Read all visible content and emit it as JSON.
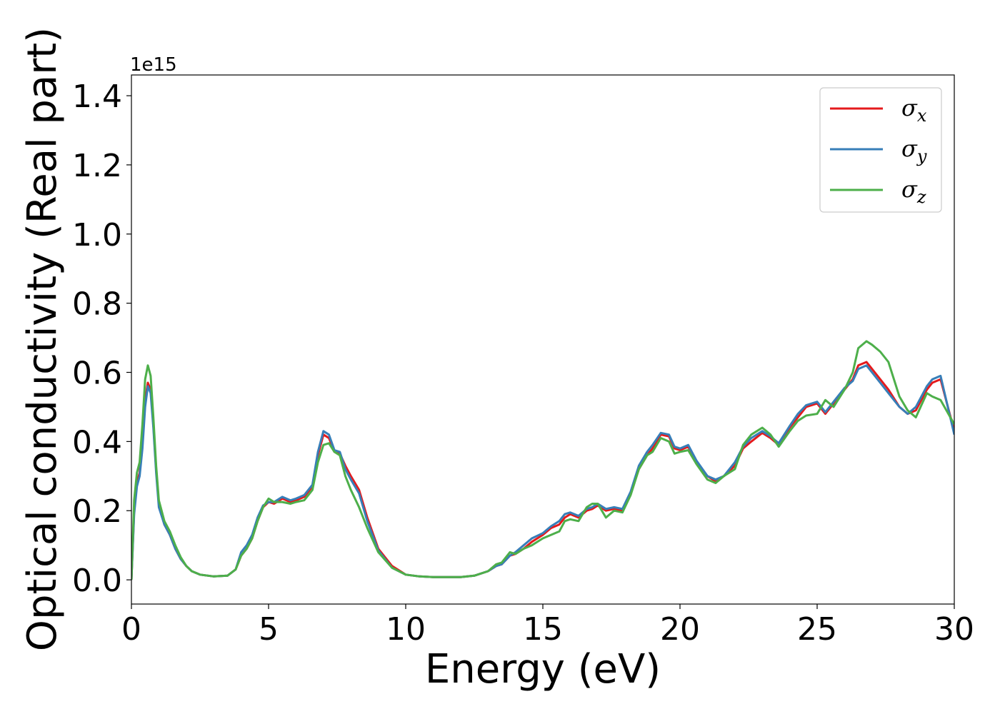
{
  "chart_data": {
    "type": "line",
    "title": "",
    "xlabel": "Energy (eV)",
    "ylabel": "Optical conductivity (Real part)",
    "y_offset_label": "1e15",
    "xlim": [
      0,
      30
    ],
    "ylim": [
      -0.07,
      1.46
    ],
    "xticks": [
      0,
      5,
      10,
      15,
      20,
      25,
      30
    ],
    "xtick_labels": [
      "0",
      "5",
      "10",
      "15",
      "20",
      "25",
      "30"
    ],
    "yticks": [
      0.0,
      0.2,
      0.4,
      0.6,
      0.8,
      1.0,
      1.2,
      1.4
    ],
    "ytick_labels": [
      "0.0",
      "0.2",
      "0.4",
      "0.6",
      "0.8",
      "1.0",
      "1.2",
      "1.4"
    ],
    "grid": false,
    "legend_position": "top-right",
    "series": [
      {
        "name": "σx",
        "name_base": "σ",
        "name_sub": "x",
        "color": "#e41a1c",
        "x": [
          0,
          0.1,
          0.2,
          0.3,
          0.4,
          0.5,
          0.6,
          0.7,
          0.8,
          0.9,
          1.0,
          1.2,
          1.4,
          1.6,
          1.8,
          2.0,
          2.2,
          2.5,
          3.0,
          3.5,
          3.8,
          4.0,
          4.2,
          4.4,
          4.6,
          4.8,
          5.0,
          5.2,
          5.5,
          5.8,
          6.0,
          6.3,
          6.6,
          6.8,
          7.0,
          7.2,
          7.4,
          7.6,
          7.8,
          8.0,
          8.3,
          8.6,
          9.0,
          9.5,
          10.0,
          10.5,
          11.0,
          12.0,
          12.5,
          13.0,
          13.3,
          13.5,
          13.8,
          14.0,
          14.3,
          14.6,
          15.0,
          15.3,
          15.6,
          15.8,
          16.0,
          16.3,
          16.6,
          16.8,
          17.0,
          17.3,
          17.6,
          17.9,
          18.2,
          18.5,
          18.8,
          19.0,
          19.3,
          19.6,
          19.8,
          20.0,
          20.3,
          20.6,
          21.0,
          21.3,
          21.6,
          22.0,
          22.3,
          22.6,
          23.0,
          23.3,
          23.6,
          24.0,
          24.3,
          24.6,
          25.0,
          25.3,
          25.6,
          26.0,
          26.3,
          26.5,
          26.8,
          27.0,
          27.3,
          27.6,
          28.0,
          28.3,
          28.6,
          29.0,
          29.2,
          29.5,
          30.0
        ],
        "y": [
          0,
          0.2,
          0.28,
          0.31,
          0.4,
          0.52,
          0.57,
          0.55,
          0.45,
          0.32,
          0.22,
          0.16,
          0.13,
          0.09,
          0.06,
          0.04,
          0.025,
          0.015,
          0.01,
          0.012,
          0.03,
          0.07,
          0.09,
          0.12,
          0.17,
          0.21,
          0.225,
          0.22,
          0.235,
          0.225,
          0.23,
          0.24,
          0.27,
          0.36,
          0.42,
          0.41,
          0.37,
          0.365,
          0.33,
          0.3,
          0.26,
          0.18,
          0.09,
          0.04,
          0.015,
          0.01,
          0.008,
          0.008,
          0.012,
          0.025,
          0.04,
          0.045,
          0.07,
          0.075,
          0.09,
          0.11,
          0.13,
          0.15,
          0.16,
          0.18,
          0.19,
          0.18,
          0.2,
          0.205,
          0.215,
          0.2,
          0.205,
          0.2,
          0.25,
          0.32,
          0.36,
          0.38,
          0.42,
          0.415,
          0.38,
          0.375,
          0.385,
          0.34,
          0.3,
          0.285,
          0.3,
          0.33,
          0.38,
          0.4,
          0.425,
          0.41,
          0.39,
          0.44,
          0.47,
          0.5,
          0.51,
          0.48,
          0.51,
          0.55,
          0.58,
          0.62,
          0.63,
          0.61,
          0.58,
          0.55,
          0.5,
          0.48,
          0.49,
          0.55,
          0.57,
          0.58,
          0.43
        ]
      },
      {
        "name": "σy",
        "name_base": "σ",
        "name_sub": "y",
        "color": "#377eb8",
        "x": [
          0,
          0.1,
          0.2,
          0.3,
          0.4,
          0.5,
          0.6,
          0.7,
          0.8,
          0.9,
          1.0,
          1.2,
          1.4,
          1.6,
          1.8,
          2.0,
          2.2,
          2.5,
          3.0,
          3.5,
          3.8,
          4.0,
          4.2,
          4.4,
          4.6,
          4.8,
          5.0,
          5.2,
          5.5,
          5.8,
          6.0,
          6.3,
          6.6,
          6.8,
          7.0,
          7.2,
          7.4,
          7.6,
          7.8,
          8.0,
          8.3,
          8.6,
          9.0,
          9.5,
          10.0,
          10.5,
          11.0,
          12.0,
          12.5,
          13.0,
          13.3,
          13.5,
          13.8,
          14.0,
          14.3,
          14.6,
          15.0,
          15.3,
          15.6,
          15.8,
          16.0,
          16.3,
          16.6,
          16.8,
          17.0,
          17.3,
          17.6,
          17.9,
          18.2,
          18.5,
          18.8,
          19.0,
          19.3,
          19.6,
          19.8,
          20.0,
          20.3,
          20.6,
          21.0,
          21.3,
          21.6,
          22.0,
          22.3,
          22.6,
          23.0,
          23.3,
          23.6,
          24.0,
          24.3,
          24.6,
          25.0,
          25.3,
          25.6,
          26.0,
          26.3,
          26.5,
          26.8,
          27.0,
          27.3,
          27.6,
          28.0,
          28.3,
          28.6,
          29.0,
          29.2,
          29.5,
          30.0
        ],
        "y": [
          0,
          0.19,
          0.27,
          0.3,
          0.38,
          0.5,
          0.56,
          0.54,
          0.44,
          0.31,
          0.21,
          0.16,
          0.13,
          0.09,
          0.06,
          0.04,
          0.025,
          0.015,
          0.01,
          0.012,
          0.03,
          0.08,
          0.1,
          0.13,
          0.18,
          0.215,
          0.225,
          0.225,
          0.24,
          0.23,
          0.235,
          0.245,
          0.275,
          0.37,
          0.43,
          0.42,
          0.375,
          0.37,
          0.32,
          0.29,
          0.25,
          0.17,
          0.085,
          0.035,
          0.015,
          0.01,
          0.008,
          0.008,
          0.012,
          0.025,
          0.04,
          0.045,
          0.07,
          0.08,
          0.1,
          0.12,
          0.135,
          0.155,
          0.17,
          0.19,
          0.195,
          0.185,
          0.205,
          0.21,
          0.22,
          0.205,
          0.21,
          0.205,
          0.255,
          0.33,
          0.37,
          0.39,
          0.425,
          0.42,
          0.385,
          0.38,
          0.39,
          0.345,
          0.3,
          0.29,
          0.3,
          0.34,
          0.385,
          0.41,
          0.43,
          0.415,
          0.395,
          0.445,
          0.48,
          0.505,
          0.515,
          0.485,
          0.515,
          0.555,
          0.575,
          0.61,
          0.62,
          0.6,
          0.57,
          0.54,
          0.5,
          0.48,
          0.5,
          0.56,
          0.58,
          0.59,
          0.42
        ]
      },
      {
        "name": "σz",
        "name_base": "σ",
        "name_sub": "z",
        "color": "#4daf4a",
        "x": [
          0,
          0.1,
          0.2,
          0.3,
          0.4,
          0.5,
          0.6,
          0.7,
          0.8,
          0.9,
          1.0,
          1.2,
          1.4,
          1.6,
          1.8,
          2.0,
          2.2,
          2.5,
          3.0,
          3.5,
          3.8,
          4.0,
          4.2,
          4.4,
          4.6,
          4.8,
          5.0,
          5.2,
          5.5,
          5.8,
          6.0,
          6.3,
          6.6,
          6.8,
          7.0,
          7.2,
          7.4,
          7.6,
          7.8,
          8.0,
          8.3,
          8.6,
          9.0,
          9.5,
          10.0,
          10.5,
          11.0,
          12.0,
          12.5,
          13.0,
          13.3,
          13.5,
          13.8,
          14.0,
          14.3,
          14.6,
          15.0,
          15.3,
          15.6,
          15.8,
          16.0,
          16.3,
          16.6,
          16.8,
          17.0,
          17.3,
          17.6,
          17.9,
          18.2,
          18.5,
          18.8,
          19.0,
          19.3,
          19.6,
          19.8,
          20.0,
          20.3,
          20.6,
          21.0,
          21.3,
          21.6,
          22.0,
          22.3,
          22.6,
          23.0,
          23.3,
          23.6,
          24.0,
          24.3,
          24.6,
          25.0,
          25.3,
          25.6,
          26.0,
          26.3,
          26.5,
          26.8,
          27.0,
          27.3,
          27.6,
          28.0,
          28.3,
          28.6,
          29.0,
          29.2,
          29.5,
          30.0
        ],
        "y": [
          0,
          0.23,
          0.31,
          0.34,
          0.45,
          0.58,
          0.62,
          0.59,
          0.47,
          0.33,
          0.23,
          0.17,
          0.14,
          0.1,
          0.065,
          0.04,
          0.025,
          0.015,
          0.01,
          0.012,
          0.03,
          0.07,
          0.09,
          0.12,
          0.17,
          0.21,
          0.235,
          0.225,
          0.225,
          0.22,
          0.225,
          0.23,
          0.26,
          0.34,
          0.39,
          0.395,
          0.37,
          0.36,
          0.3,
          0.26,
          0.21,
          0.15,
          0.08,
          0.035,
          0.015,
          0.01,
          0.008,
          0.008,
          0.012,
          0.025,
          0.045,
          0.05,
          0.08,
          0.075,
          0.09,
          0.1,
          0.12,
          0.13,
          0.14,
          0.17,
          0.175,
          0.17,
          0.21,
          0.22,
          0.22,
          0.18,
          0.2,
          0.195,
          0.245,
          0.32,
          0.36,
          0.37,
          0.41,
          0.4,
          0.365,
          0.37,
          0.375,
          0.335,
          0.29,
          0.28,
          0.3,
          0.32,
          0.39,
          0.42,
          0.44,
          0.42,
          0.385,
          0.43,
          0.46,
          0.475,
          0.48,
          0.52,
          0.5,
          0.55,
          0.6,
          0.67,
          0.69,
          0.68,
          0.66,
          0.63,
          0.53,
          0.49,
          0.47,
          0.54,
          0.53,
          0.52,
          0.45
        ]
      }
    ]
  }
}
